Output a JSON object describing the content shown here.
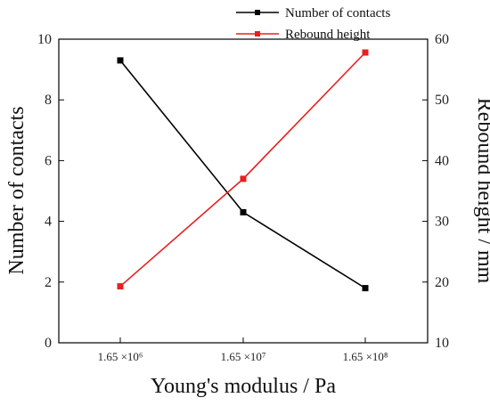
{
  "chart_data": {
    "type": "line",
    "categories": [
      "1.65 ×10⁶",
      "1.65 ×10⁷",
      "1.65 ×10⁸"
    ],
    "xlabel": "Young's modulus / Pa",
    "ylabel_left": "Number of contacts",
    "ylabel_right": "Rebound height / mm",
    "ylim_left": [
      0,
      10
    ],
    "ylim_right": [
      10,
      60
    ],
    "yticks_left": [
      0,
      2,
      4,
      6,
      8,
      10
    ],
    "yticks_right": [
      10,
      20,
      30,
      40,
      50,
      60
    ],
    "grid": false,
    "legend_position": "top-right",
    "series": [
      {
        "name": "Number of contacts",
        "axis": "left",
        "color": "#000000",
        "values": [
          9.3,
          4.3,
          1.8
        ]
      },
      {
        "name": "Rebound height",
        "axis": "right",
        "color": "#e8201f",
        "values": [
          19.3,
          37.0,
          57.8
        ]
      }
    ]
  }
}
